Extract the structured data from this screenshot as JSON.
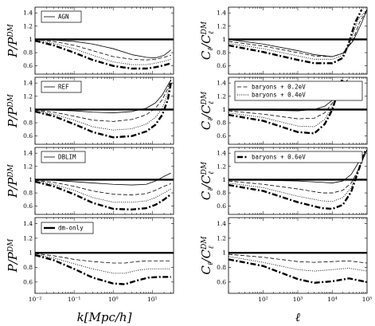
{
  "chart_data": {
    "type": "line",
    "columns": [
      {
        "id": "left",
        "xlabel": "k[Mpc/h]",
        "x_scale": "log",
        "xlim": [
          0.01,
          35
        ],
        "x_ticks": [
          0.01,
          0.1,
          1,
          10
        ],
        "x_tick_labels": [
          "10⁻²",
          "10⁻¹",
          "10⁰",
          "10¹"
        ]
      },
      {
        "id": "right",
        "xlabel": "ℓ",
        "x_scale": "log",
        "xlim": [
          10,
          100000
        ],
        "x_ticks": [
          100,
          1000,
          10000,
          100000
        ],
        "x_tick_labels": [
          "10²",
          "10³",
          "10⁴",
          "10⁵"
        ]
      }
    ],
    "ylim": [
      0.5,
      1.45
    ],
    "y_ticks": [
      0.6,
      0.8,
      1.0,
      1.2,
      1.4
    ],
    "y_tick_labels": [
      "0.6",
      "0.8",
      "1",
      "1.2",
      "1.4"
    ],
    "panels": [
      {
        "row": 0,
        "column": "left",
        "ylabel": "P/P^DM",
        "legend": [
          {
            "label": "AGN",
            "style": "thin"
          }
        ],
        "series": [
          {
            "style": "thin",
            "x": [
              0.01,
              0.03,
              0.1,
              0.3,
              1,
              3,
              7,
              12,
              20,
              30
            ],
            "y": [
              1.0,
              0.99,
              0.97,
              0.93,
              0.86,
              0.77,
              0.73,
              0.72,
              0.76,
              0.84
            ]
          },
          {
            "style": "dashed",
            "x": [
              0.01,
              0.03,
              0.1,
              0.3,
              1,
              3,
              7,
              12,
              20,
              30
            ],
            "y": [
              1.0,
              0.97,
              0.91,
              0.83,
              0.74,
              0.7,
              0.69,
              0.7,
              0.73,
              0.76
            ]
          },
          {
            "style": "dotted",
            "x": [
              0.01,
              0.03,
              0.1,
              0.3,
              1,
              3,
              7,
              12,
              20,
              30
            ],
            "y": [
              0.99,
              0.94,
              0.86,
              0.76,
              0.66,
              0.62,
              0.62,
              0.64,
              0.67,
              0.7
            ]
          },
          {
            "style": "dashdot",
            "x": [
              0.01,
              0.03,
              0.1,
              0.3,
              1,
              3,
              7,
              12,
              20,
              30
            ],
            "y": [
              0.98,
              0.91,
              0.8,
              0.69,
              0.6,
              0.56,
              0.56,
              0.58,
              0.61,
              0.64
            ]
          },
          {
            "style": "thick",
            "x": [
              0.01,
              35
            ],
            "y": [
              1.0,
              1.0
            ]
          }
        ]
      },
      {
        "row": 0,
        "column": "right",
        "ylabel": "C_ℓ/C_ℓ^DM",
        "legend": [],
        "series": [
          {
            "style": "thin",
            "x": [
              10,
              100,
              1000,
              3000,
              10000,
              20000,
              40000,
              70000,
              100000
            ],
            "y": [
              1.0,
              0.93,
              0.83,
              0.77,
              0.74,
              0.79,
              0.98,
              1.25,
              1.45
            ]
          },
          {
            "style": "dashed",
            "x": [
              10,
              100,
              1000,
              3000,
              10000,
              20000,
              40000,
              60000,
              100000
            ],
            "y": [
              0.97,
              0.9,
              0.8,
              0.75,
              0.74,
              0.79,
              1.0,
              1.25,
              1.45
            ]
          },
          {
            "style": "dotted",
            "x": [
              10,
              100,
              1000,
              3000,
              10000,
              20000,
              35000,
              55000,
              100000
            ],
            "y": [
              0.94,
              0.86,
              0.75,
              0.7,
              0.7,
              0.76,
              1.0,
              1.3,
              1.45
            ]
          },
          {
            "style": "dashdot",
            "x": [
              10,
              100,
              1000,
              3000,
              10000,
              20000,
              30000,
              45000,
              70000
            ],
            "y": [
              0.91,
              0.81,
              0.69,
              0.64,
              0.64,
              0.72,
              0.95,
              1.25,
              1.45
            ]
          },
          {
            "style": "thick",
            "x": [
              10,
              100000
            ],
            "y": [
              1.0,
              1.0
            ]
          }
        ]
      },
      {
        "row": 1,
        "column": "left",
        "ylabel": "P/P^DM",
        "legend": [
          {
            "label": "REF",
            "style": "thin"
          }
        ],
        "series": [
          {
            "style": "thin",
            "x": [
              0.01,
              0.03,
              0.1,
              0.3,
              1,
              3,
              7,
              12,
              18,
              25,
              30
            ],
            "y": [
              1.0,
              0.99,
              0.98,
              0.96,
              0.95,
              0.97,
              1.02,
              1.1,
              1.22,
              1.37,
              1.45
            ]
          },
          {
            "style": "dashed",
            "x": [
              0.01,
              0.03,
              0.1,
              0.3,
              1,
              3,
              7,
              12,
              18,
              25,
              30
            ],
            "y": [
              0.99,
              0.96,
              0.9,
              0.84,
              0.82,
              0.85,
              0.92,
              1.02,
              1.15,
              1.32,
              1.45
            ]
          },
          {
            "style": "dotted",
            "x": [
              0.01,
              0.03,
              0.1,
              0.3,
              1,
              3,
              7,
              12,
              18,
              25,
              30
            ],
            "y": [
              0.98,
              0.93,
              0.84,
              0.74,
              0.69,
              0.71,
              0.78,
              0.88,
              1.02,
              1.25,
              1.45
            ]
          },
          {
            "style": "dashdot",
            "x": [
              0.01,
              0.03,
              0.1,
              0.3,
              1,
              3,
              7,
              12,
              18,
              25,
              30
            ],
            "y": [
              0.97,
              0.9,
              0.78,
              0.66,
              0.58,
              0.6,
              0.67,
              0.77,
              0.92,
              1.15,
              1.4
            ]
          },
          {
            "style": "thick",
            "x": [
              0.01,
              35
            ],
            "y": [
              1.0,
              1.0
            ]
          }
        ]
      },
      {
        "row": 1,
        "column": "right",
        "ylabel": "C_ℓ/C_ℓ^DM",
        "legend": [
          {
            "label": "baryons + 0.2eV",
            "style": "dashed"
          },
          {
            "label": "baryons + 0.4eV",
            "style": "dotted"
          }
        ],
        "series": [
          {
            "style": "thin",
            "x": [
              10,
              100,
              1000,
              3000,
              6000,
              10000,
              15000,
              20000,
              28000
            ],
            "y": [
              1.0,
              0.99,
              0.98,
              1.0,
              1.05,
              1.14,
              1.28,
              1.38,
              1.45
            ]
          },
          {
            "style": "dashed",
            "x": [
              10,
              100,
              1000,
              3000,
              6000,
              10000,
              15000,
              22000
            ],
            "y": [
              0.98,
              0.93,
              0.86,
              0.87,
              0.95,
              1.1,
              1.3,
              1.45
            ]
          },
          {
            "style": "dotted",
            "x": [
              10,
              100,
              1000,
              3000,
              6000,
              10000,
              15000,
              20000
            ],
            "y": [
              0.95,
              0.88,
              0.75,
              0.74,
              0.85,
              1.05,
              1.3,
              1.45
            ]
          },
          {
            "style": "dashdot",
            "x": [
              10,
              100,
              1000,
              3000,
              6000,
              10000,
              14000,
              19000
            ],
            "y": [
              0.92,
              0.83,
              0.66,
              0.64,
              0.78,
              1.0,
              1.25,
              1.45
            ]
          },
          {
            "style": "thick",
            "x": [
              10,
              100000
            ],
            "y": [
              1.0,
              1.0
            ]
          }
        ]
      },
      {
        "row": 2,
        "column": "left",
        "ylabel": "P/P^DM",
        "legend": [
          {
            "label": "DBLIM",
            "style": "thin"
          }
        ],
        "series": [
          {
            "style": "thin",
            "x": [
              0.01,
              0.03,
              0.1,
              0.3,
              1,
              3,
              7,
              12,
              20,
              30
            ],
            "y": [
              1.0,
              0.99,
              0.97,
              0.95,
              0.93,
              0.92,
              0.93,
              0.98,
              1.05,
              1.1
            ]
          },
          {
            "style": "dashed",
            "x": [
              0.01,
              0.03,
              0.1,
              0.3,
              1,
              3,
              7,
              12,
              20,
              30
            ],
            "y": [
              0.99,
              0.96,
              0.9,
              0.83,
              0.78,
              0.77,
              0.79,
              0.84,
              0.9,
              0.94
            ]
          },
          {
            "style": "dotted",
            "x": [
              0.01,
              0.03,
              0.1,
              0.3,
              1,
              3,
              7,
              12,
              20,
              30
            ],
            "y": [
              0.98,
              0.93,
              0.84,
              0.73,
              0.66,
              0.66,
              0.68,
              0.73,
              0.8,
              0.86
            ]
          },
          {
            "style": "dashdot",
            "x": [
              0.01,
              0.03,
              0.1,
              0.3,
              1,
              3,
              7,
              12,
              20,
              30
            ],
            "y": [
              0.97,
              0.9,
              0.78,
              0.65,
              0.56,
              0.55,
              0.57,
              0.62,
              0.7,
              0.78
            ]
          },
          {
            "style": "thick",
            "x": [
              0.01,
              35
            ],
            "y": [
              1.0,
              1.0
            ]
          }
        ]
      },
      {
        "row": 2,
        "column": "right",
        "ylabel": "C_ℓ/C_ℓ^DM",
        "legend": [
          {
            "label": "baryons + 0.6eV",
            "style": "dashdot"
          }
        ],
        "series": [
          {
            "style": "thin",
            "x": [
              10,
              100,
              1000,
              5000,
              10000,
              20000,
              35000,
              60000,
              100000
            ],
            "y": [
              1.0,
              0.99,
              0.98,
              0.96,
              0.95,
              0.98,
              1.08,
              1.28,
              1.45
            ]
          },
          {
            "style": "dashed",
            "x": [
              10,
              100,
              1000,
              5000,
              10000,
              20000,
              35000,
              60000,
              100000
            ],
            "y": [
              0.98,
              0.93,
              0.86,
              0.8,
              0.8,
              0.84,
              0.95,
              1.18,
              1.45
            ]
          },
          {
            "style": "dotted",
            "x": [
              10,
              100,
              1000,
              5000,
              10000,
              20000,
              35000,
              55000,
              100000
            ],
            "y": [
              0.95,
              0.88,
              0.75,
              0.68,
              0.67,
              0.73,
              0.88,
              1.15,
              1.45
            ]
          },
          {
            "style": "dashdot",
            "x": [
              10,
              100,
              1000,
              5000,
              10000,
              20000,
              35000,
              55000,
              90000
            ],
            "y": [
              0.92,
              0.83,
              0.66,
              0.57,
              0.56,
              0.62,
              0.82,
              1.12,
              1.45
            ]
          },
          {
            "style": "thick",
            "x": [
              10,
              100000
            ],
            "y": [
              1.0,
              1.0
            ]
          }
        ]
      },
      {
        "row": 3,
        "column": "left",
        "ylabel": "P/P^DM",
        "legend": [
          {
            "label": "dm-only",
            "style": "thick"
          }
        ],
        "series": [
          {
            "style": "dashed",
            "x": [
              0.01,
              0.03,
              0.1,
              0.3,
              1,
              2,
              4,
              8,
              15,
              30
            ],
            "y": [
              0.99,
              0.96,
              0.91,
              0.88,
              0.86,
              0.86,
              0.88,
              0.89,
              0.89,
              0.89
            ]
          },
          {
            "style": "dotted",
            "x": [
              0.01,
              0.03,
              0.1,
              0.3,
              1,
              2,
              4,
              8,
              15,
              30
            ],
            "y": [
              0.98,
              0.93,
              0.85,
              0.78,
              0.72,
              0.72,
              0.76,
              0.78,
              0.78,
              0.78
            ]
          },
          {
            "style": "dashdot",
            "x": [
              0.01,
              0.03,
              0.1,
              0.3,
              1,
              2,
              4,
              8,
              15,
              30
            ],
            "y": [
              0.97,
              0.9,
              0.78,
              0.66,
              0.58,
              0.57,
              0.62,
              0.66,
              0.67,
              0.67
            ]
          },
          {
            "style": "thick",
            "x": [
              0.01,
              35
            ],
            "y": [
              1.0,
              1.0
            ]
          }
        ]
      },
      {
        "row": 3,
        "column": "right",
        "ylabel": "C_ℓ/C_ℓ^DM",
        "legend": [],
        "series": [
          {
            "style": "dashed",
            "x": [
              10,
              100,
              1000,
              3000,
              10000,
              30000,
              100000
            ],
            "y": [
              0.98,
              0.94,
              0.88,
              0.87,
              0.88,
              0.89,
              0.86
            ]
          },
          {
            "style": "dotted",
            "x": [
              10,
              100,
              1000,
              3000,
              10000,
              30000,
              100000
            ],
            "y": [
              0.95,
              0.87,
              0.77,
              0.75,
              0.77,
              0.79,
              0.75
            ]
          },
          {
            "style": "dashdot",
            "x": [
              10,
              100,
              1000,
              3000,
              10000,
              30000,
              100000
            ],
            "y": [
              0.91,
              0.82,
              0.64,
              0.59,
              0.61,
              0.65,
              0.6
            ]
          },
          {
            "style": "thick",
            "x": [
              10,
              100000
            ],
            "y": [
              1.0,
              1.0
            ]
          }
        ]
      }
    ]
  }
}
